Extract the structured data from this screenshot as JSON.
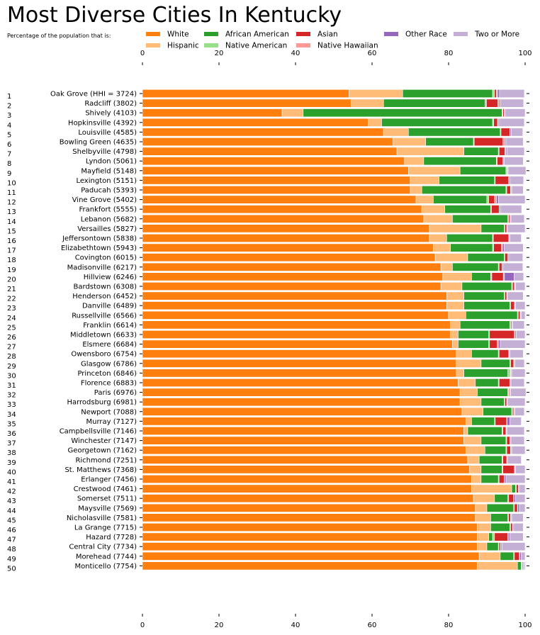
{
  "title": "Most Diverse Cities In Kentucky",
  "subtitle": "Percentage of the population that is:",
  "chart_data": {
    "type": "bar",
    "orientation": "horizontal",
    "stacked": true,
    "xlim": [
      0,
      100
    ],
    "x_ticks": [
      "0",
      "20",
      "40",
      "60",
      "80",
      "100"
    ],
    "legend_placement": "top",
    "series": [
      {
        "name": "White",
        "color": "#ff7f0e"
      },
      {
        "name": "Hispanic",
        "color": "#ffbb78"
      },
      {
        "name": "African American",
        "color": "#2ca02c"
      },
      {
        "name": "Native American",
        "color": "#98df8a"
      },
      {
        "name": "Asian",
        "color": "#d62728"
      },
      {
        "name": "Native Hawaiian",
        "color": "#ff9896"
      },
      {
        "name": "Other Race",
        "color": "#9467bd"
      },
      {
        "name": "Two or More",
        "color": "#c5b0d5"
      }
    ],
    "rows": [
      {
        "rank": "1",
        "label": "Oak Grove (HHI = 3724)",
        "values": [
          54.0,
          14.0,
          23.5,
          0.5,
          0.5,
          0.3,
          0.5,
          6.5
        ]
      },
      {
        "rank": "2",
        "label": "Radcliff (3802)",
        "values": [
          54.5,
          8.5,
          26.5,
          0.4,
          3.0,
          0.4,
          0.3,
          6.0
        ]
      },
      {
        "rank": "3",
        "label": "Shively (4103)",
        "values": [
          36.5,
          5.5,
          52.0,
          0.2,
          0.3,
          0.1,
          0.2,
          5.2
        ]
      },
      {
        "rank": "4",
        "label": "Hopkinsville (4392)",
        "values": [
          59.0,
          3.5,
          29.0,
          0.3,
          1.0,
          0.2,
          0.3,
          6.5
        ]
      },
      {
        "rank": "5",
        "label": "Louisville (4585)",
        "values": [
          63.0,
          6.5,
          24.0,
          0.2,
          2.3,
          0.1,
          0.3,
          3.0
        ]
      },
      {
        "rank": "6",
        "label": "Bowling Green (4635)",
        "values": [
          65.5,
          8.5,
          12.5,
          0.2,
          7.5,
          0.5,
          0.3,
          4.5
        ]
      },
      {
        "rank": "7",
        "label": "Shelbyville (4798)",
        "values": [
          66.5,
          17.5,
          9.0,
          0.2,
          1.5,
          0.3,
          0.3,
          4.5
        ]
      },
      {
        "rank": "8",
        "label": "Lyndon (5061)",
        "values": [
          68.5,
          5.0,
          19.0,
          0.2,
          1.5,
          0.1,
          0.2,
          5.0
        ]
      },
      {
        "rank": "9",
        "label": "Mayfield (5148)",
        "values": [
          69.5,
          13.5,
          12.0,
          0.2,
          0.2,
          0.1,
          0.2,
          4.5
        ]
      },
      {
        "rank": "10",
        "label": "Lexington (5151)",
        "values": [
          70.0,
          7.5,
          14.5,
          0.2,
          3.5,
          0.1,
          0.3,
          3.5
        ]
      },
      {
        "rank": "11",
        "label": "Paducah (5393)",
        "values": [
          70.0,
          3.0,
          22.0,
          0.2,
          1.0,
          0.1,
          0.2,
          3.0
        ]
      },
      {
        "rank": "12",
        "label": "Vine Grove (5402)",
        "values": [
          71.5,
          4.5,
          14.0,
          0.5,
          1.5,
          0.5,
          0.5,
          7.0
        ]
      },
      {
        "rank": "13",
        "label": "Frankfort (5555)",
        "values": [
          73.0,
          6.0,
          12.0,
          0.2,
          2.0,
          0.1,
          0.3,
          5.5
        ]
      },
      {
        "rank": "14",
        "label": "Lebanon (5682)",
        "values": [
          73.5,
          7.5,
          14.5,
          0.2,
          0.3,
          0.1,
          0.2,
          3.5
        ]
      },
      {
        "rank": "15",
        "label": "Versailles (5827)",
        "values": [
          75.0,
          13.5,
          6.0,
          0.2,
          0.5,
          0.1,
          0.2,
          4.5
        ]
      },
      {
        "rank": "16",
        "label": "Jeffersontown (5838)",
        "values": [
          75.0,
          4.5,
          12.0,
          0.2,
          4.0,
          0.1,
          0.2,
          3.0
        ]
      },
      {
        "rank": "17",
        "label": "Elizabethtown (5943)",
        "values": [
          76.0,
          4.5,
          11.0,
          0.3,
          2.0,
          0.3,
          0.4,
          5.0
        ]
      },
      {
        "rank": "18",
        "label": "Covington (6015)",
        "values": [
          76.5,
          8.5,
          9.5,
          0.2,
          0.8,
          0.1,
          0.3,
          3.5
        ]
      },
      {
        "rank": "19",
        "label": "Madisonville (6217)",
        "values": [
          78.0,
          3.0,
          12.0,
          0.2,
          0.8,
          0.1,
          0.3,
          5.0
        ]
      },
      {
        "rank": "20",
        "label": "Hillview (6246)",
        "values": [
          78.5,
          7.5,
          5.0,
          0.3,
          3.0,
          0.3,
          2.5,
          2.5
        ]
      },
      {
        "rank": "21",
        "label": "Bardstown (6308)",
        "values": [
          78.0,
          5.5,
          13.0,
          0.2,
          0.5,
          0.1,
          0.2,
          2.5
        ]
      },
      {
        "rank": "22",
        "label": "Henderson (6452)",
        "values": [
          79.5,
          4.5,
          10.5,
          0.2,
          0.5,
          0.1,
          0.2,
          4.0
        ]
      },
      {
        "rank": "23",
        "label": "Danville (6489)",
        "values": [
          79.5,
          4.5,
          12.0,
          0.2,
          1.0,
          0.1,
          0.2,
          2.5
        ]
      },
      {
        "rank": "24",
        "label": "Russellville (6566)",
        "values": [
          80.0,
          4.5,
          13.5,
          0.2,
          0.5,
          0.1,
          0.2,
          1.0
        ]
      },
      {
        "rank": "25",
        "label": "Franklin (6614)",
        "values": [
          80.5,
          2.5,
          13.0,
          0.2,
          0.3,
          0.1,
          0.2,
          3.0
        ]
      },
      {
        "rank": "26",
        "label": "Middletown (6633)",
        "values": [
          80.5,
          2.0,
          8.0,
          0.2,
          6.5,
          0.2,
          0.3,
          2.3
        ]
      },
      {
        "rank": "27",
        "label": "Elsmere (6684)",
        "values": [
          81.0,
          1.5,
          8.0,
          0.2,
          2.0,
          0.3,
          0.5,
          6.5
        ]
      },
      {
        "rank": "28",
        "label": "Owensboro (6754)",
        "values": [
          82.0,
          4.0,
          7.0,
          0.2,
          2.5,
          0.1,
          0.2,
          3.5
        ]
      },
      {
        "rank": "29",
        "label": "Glasgow (6786)",
        "values": [
          82.0,
          6.5,
          7.5,
          0.2,
          0.8,
          0.1,
          0.2,
          2.5
        ]
      },
      {
        "rank": "30",
        "label": "Princeton (6846)",
        "values": [
          82.0,
          2.0,
          11.5,
          0.5,
          0.2,
          0.1,
          0.2,
          3.5
        ]
      },
      {
        "rank": "31",
        "label": "Florence (6883)",
        "values": [
          82.5,
          4.5,
          6.0,
          0.2,
          2.8,
          0.1,
          0.2,
          3.5
        ]
      },
      {
        "rank": "32",
        "label": "Paris (6976)",
        "values": [
          83.0,
          4.5,
          8.0,
          0.2,
          0.2,
          0.1,
          0.2,
          4.0
        ]
      },
      {
        "rank": "33",
        "label": "Harrodsburg (6981)",
        "values": [
          83.0,
          5.5,
          6.0,
          0.2,
          0.5,
          0.1,
          0.2,
          4.5
        ]
      },
      {
        "rank": "34",
        "label": "Newport (7088)",
        "values": [
          83.5,
          5.5,
          7.5,
          0.2,
          0.3,
          0.1,
          0.2,
          2.5
        ]
      },
      {
        "rank": "35",
        "label": "Murray (7127)",
        "values": [
          84.5,
          1.5,
          6.0,
          0.2,
          3.0,
          0.1,
          0.7,
          3.0
        ]
      },
      {
        "rank": "36",
        "label": "Campbellsville (7146)",
        "values": [
          84.0,
          1.0,
          9.0,
          0.2,
          0.8,
          0.1,
          0.2,
          4.5
        ]
      },
      {
        "rank": "37",
        "label": "Winchester (7147)",
        "values": [
          84.0,
          4.5,
          6.5,
          0.2,
          0.8,
          0.1,
          0.2,
          3.5
        ]
      },
      {
        "rank": "38",
        "label": "Georgetown (7162)",
        "values": [
          84.5,
          5.0,
          5.5,
          0.2,
          1.0,
          0.1,
          0.2,
          3.5
        ]
      },
      {
        "rank": "39",
        "label": "Richmond (7251)",
        "values": [
          85.0,
          3.0,
          6.0,
          0.2,
          1.0,
          0.1,
          0.2,
          3.5
        ]
      },
      {
        "rank": "40",
        "label": "St. Matthews (7368)",
        "values": [
          85.5,
          3.0,
          5.5,
          0.2,
          3.0,
          0.1,
          0.2,
          2.5
        ]
      },
      {
        "rank": "41",
        "label": "Erlanger (7456)",
        "values": [
          86.0,
          2.5,
          4.5,
          0.2,
          1.3,
          0.1,
          0.4,
          5.0
        ]
      },
      {
        "rank": "42",
        "label": "Crestwood (7461)",
        "values": [
          86.0,
          10.5,
          1.0,
          0.2,
          0.5,
          0.1,
          0.2,
          1.5
        ]
      },
      {
        "rank": "43",
        "label": "Somerset (7511)",
        "values": [
          86.5,
          5.5,
          3.5,
          0.2,
          1.3,
          0.1,
          0.4,
          2.5
        ]
      },
      {
        "rank": "44",
        "label": "Maysville (7569)",
        "values": [
          87.0,
          3.0,
          7.0,
          0.2,
          0.8,
          0.1,
          0.4,
          1.5
        ]
      },
      {
        "rank": "45",
        "label": "Nicholasville (7581)",
        "values": [
          87.0,
          4.0,
          4.5,
          0.2,
          0.5,
          0.1,
          0.2,
          3.0
        ]
      },
      {
        "rank": "46",
        "label": "La Grange (7715)",
        "values": [
          87.5,
          3.5,
          5.0,
          0.2,
          0.5,
          0.1,
          0.2,
          2.5
        ]
      },
      {
        "rank": "47",
        "label": "Hazard (7728)",
        "values": [
          87.5,
          3.0,
          1.0,
          0.5,
          3.5,
          0.1,
          0.4,
          3.5
        ]
      },
      {
        "rank": "48",
        "label": "Central City (7734)",
        "values": [
          87.5,
          2.5,
          3.0,
          0.2,
          0.4,
          0.1,
          0.3,
          6.0
        ]
      },
      {
        "rank": "49",
        "label": "Morehead (7744)",
        "values": [
          88.0,
          5.5,
          3.5,
          0.2,
          1.3,
          0.1,
          0.4,
          1.0
        ]
      },
      {
        "rank": "50",
        "label": "Monticello (7754)",
        "values": [
          87.5,
          10.5,
          1.0,
          0.2,
          0.2,
          0.1,
          0.2,
          0.3
        ]
      }
    ]
  }
}
